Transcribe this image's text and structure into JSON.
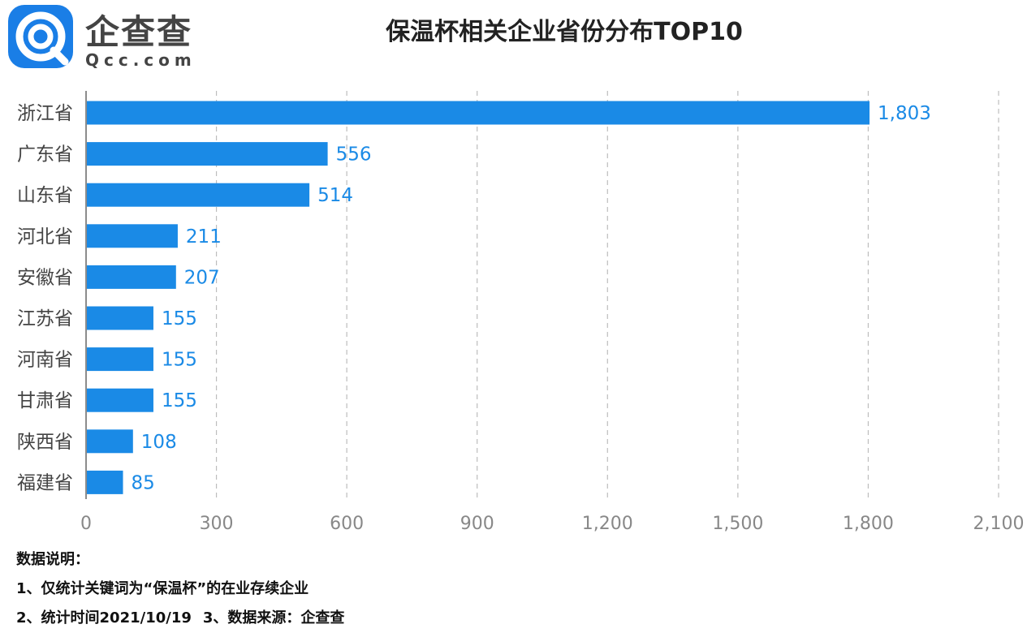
{
  "logo": {
    "name": "企查查",
    "sub": "Qcc.com",
    "color": "#1a7ee6"
  },
  "chart_data": {
    "type": "bar",
    "orientation": "horizontal",
    "title": "保温杯相关企业省份分布TOP10",
    "categories": [
      "浙江省",
      "广东省",
      "山东省",
      "河北省",
      "安徽省",
      "江苏省",
      "河南省",
      "甘肃省",
      "陕西省",
      "福建省"
    ],
    "values": [
      1803,
      556,
      514,
      211,
      207,
      155,
      155,
      155,
      108,
      85
    ],
    "value_labels": [
      "1,803",
      "556",
      "514",
      "211",
      "207",
      "155",
      "155",
      "155",
      "108",
      "85"
    ],
    "xlim": [
      0,
      2100
    ],
    "xticks": [
      0,
      300,
      600,
      900,
      1200,
      1500,
      1800,
      2100
    ],
    "xtick_labels": [
      "0",
      "300",
      "600",
      "900",
      "1,200",
      "1,500",
      "1,800",
      "2,100"
    ],
    "grid": "vertical-dashed",
    "bar_color": "#1a8ae6",
    "label_color": "#1a8ae6"
  },
  "notes": {
    "heading": "数据说明：",
    "line1": "1、仅统计关键词为“保温杯”的在业存续企业",
    "line2a": "2、统计时间2021/10/19",
    "line2b": "3、数据来源：企查查"
  }
}
